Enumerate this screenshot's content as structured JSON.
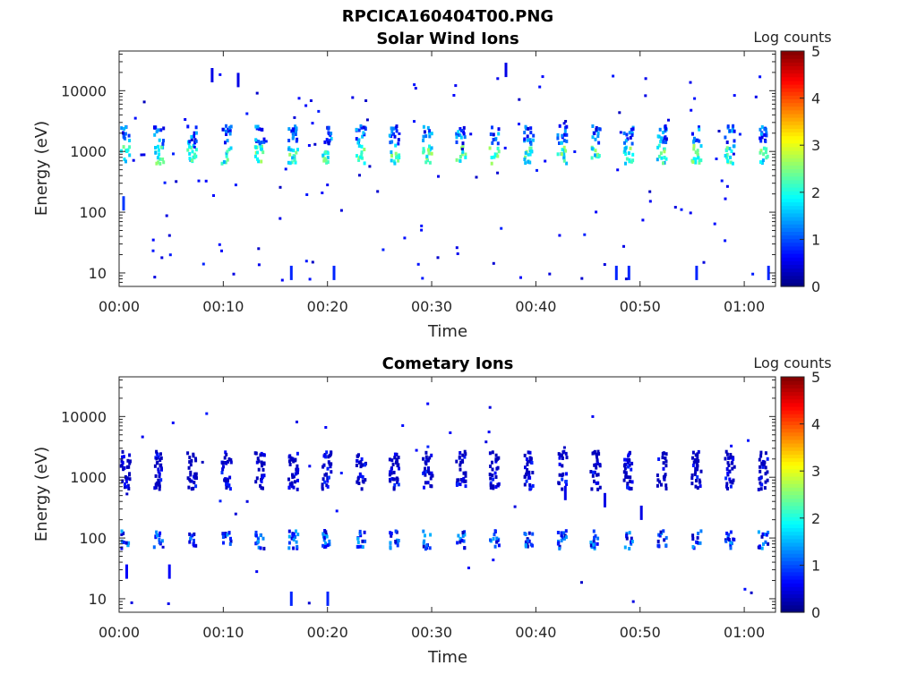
{
  "figure": {
    "title": "RPCICA160404T00.PNG"
  },
  "panels": [
    {
      "title": "Solar Wind Ions",
      "xlabel": "Time",
      "ylabel": "Energy (eV)",
      "colorbar_label": "Log counts",
      "colorbar_ticks": [
        "0",
        "1",
        "2",
        "3",
        "4",
        "5"
      ],
      "xtick_labels": [
        "00:00",
        "00:10",
        "00:20",
        "00:30",
        "00:40",
        "00:50",
        "01:00"
      ],
      "ytick_labels": [
        "10",
        "100",
        "1000",
        "10000"
      ]
    },
    {
      "title": "Cometary Ions",
      "xlabel": "Time",
      "ylabel": "Energy (eV)",
      "colorbar_label": "Log counts",
      "colorbar_ticks": [
        "0",
        "1",
        "2",
        "3",
        "4",
        "5"
      ],
      "xtick_labels": [
        "00:00",
        "00:10",
        "00:20",
        "00:30",
        "00:40",
        "00:50",
        "01:00"
      ],
      "ytick_labels": [
        "10",
        "100",
        "1000",
        "10000"
      ]
    }
  ],
  "chart_data": [
    {
      "type": "heatmap",
      "title": "Solar Wind Ions",
      "xlabel": "Time",
      "ylabel": "Energy (eV)",
      "x_unit": "minutes after 00:00",
      "xlim": [
        0,
        63
      ],
      "ylim": [
        6,
        45000
      ],
      "yscale": "log",
      "colorbar": {
        "label": "Log counts",
        "range": [
          0,
          5
        ],
        "colormap": "jet"
      },
      "grid": false,
      "sweep_times_min": [
        0.5,
        3.7,
        6.9,
        10.2,
        13.4,
        16.6,
        19.8,
        23.1,
        26.3,
        29.5,
        32.7,
        35.9,
        39.2,
        42.4,
        45.6,
        48.8,
        52.0,
        55.3,
        58.5,
        61.7
      ],
      "peaks": [
        {
          "energy_ev": 950,
          "log_counts": 2.7
        },
        {
          "energy_ev": 2000,
          "log_counts": 1.7
        }
      ],
      "sparse_points": [
        {
          "t_min": 8.8,
          "energy_ev": 18000,
          "log_counts": 0.5
        },
        {
          "t_min": 11.3,
          "energy_ev": 15000,
          "log_counts": 0.5
        },
        {
          "t_min": 37.0,
          "energy_ev": 22000,
          "log_counts": 0.5
        },
        {
          "t_min": 16.4,
          "energy_ev": 10,
          "log_counts": 0.8
        },
        {
          "t_min": 20.5,
          "energy_ev": 10,
          "log_counts": 0.8
        },
        {
          "t_min": 47.6,
          "energy_ev": 10,
          "log_counts": 0.8
        },
        {
          "t_min": 48.8,
          "energy_ev": 10,
          "log_counts": 0.8
        },
        {
          "t_min": 55.3,
          "energy_ev": 10,
          "log_counts": 0.8
        },
        {
          "t_min": 62.2,
          "energy_ev": 10,
          "log_counts": 0.8
        },
        {
          "t_min": 0.3,
          "energy_ev": 140,
          "log_counts": 0.9
        }
      ]
    },
    {
      "type": "heatmap",
      "title": "Cometary Ions",
      "xlabel": "Time",
      "ylabel": "Energy (eV)",
      "x_unit": "minutes after 00:00",
      "xlim": [
        0,
        63
      ],
      "ylim": [
        6,
        45000
      ],
      "yscale": "log",
      "colorbar": {
        "label": "Log counts",
        "range": [
          0,
          5
        ],
        "colormap": "jet"
      },
      "grid": false,
      "sweep_times_min": [
        0.5,
        3.7,
        6.9,
        10.2,
        13.4,
        16.6,
        19.8,
        23.1,
        26.3,
        29.5,
        32.7,
        35.9,
        39.2,
        42.4,
        45.6,
        48.8,
        52.0,
        55.3,
        58.5,
        61.7
      ],
      "peaks": [
        {
          "energy_ev": 100,
          "log_counts": 1.5
        },
        {
          "energy_ev": 950,
          "log_counts": 0.9
        },
        {
          "energy_ev": 2000,
          "log_counts": 0.8
        }
      ],
      "sparse_points": [
        {
          "t_min": 16.4,
          "energy_ev": 10,
          "log_counts": 0.8
        },
        {
          "t_min": 19.9,
          "energy_ev": 10,
          "log_counts": 0.8
        },
        {
          "t_min": 42.7,
          "energy_ev": 550,
          "log_counts": 0.5
        },
        {
          "t_min": 46.5,
          "energy_ev": 420,
          "log_counts": 0.5
        },
        {
          "t_min": 50.0,
          "energy_ev": 260,
          "log_counts": 0.5
        },
        {
          "t_min": 0.6,
          "energy_ev": 28,
          "log_counts": 0.6
        },
        {
          "t_min": 4.7,
          "energy_ev": 28,
          "log_counts": 0.6
        }
      ]
    }
  ]
}
